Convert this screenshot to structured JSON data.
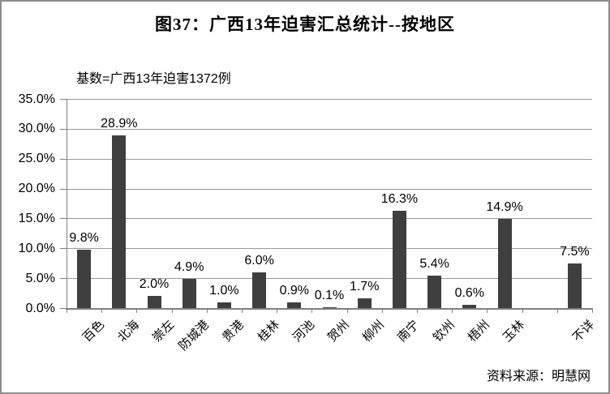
{
  "chart_data": {
    "type": "bar",
    "title": "图37：广西13年迫害汇总统计--按地区",
    "subtitle": "基数=广西13年迫害1372例",
    "source": "资料来源：明慧网",
    "categories": [
      "百色",
      "北海",
      "崇左",
      "防城港",
      "贵港",
      "桂林",
      "河池",
      "贺州",
      "柳州",
      "南宁",
      "钦州",
      "梧州",
      "玉林",
      "",
      "不详"
    ],
    "values": [
      9.8,
      28.9,
      2.0,
      4.9,
      1.0,
      6.0,
      0.9,
      0.1,
      1.7,
      16.3,
      5.4,
      0.6,
      14.9,
      null,
      7.5
    ],
    "value_labels": [
      "9.8%",
      "28.9%",
      "2.0%",
      "4.9%",
      "1.0%",
      "6.0%",
      "0.9%",
      "0.1%",
      "1.7%",
      "16.3%",
      "5.4%",
      "0.6%",
      "14.9%",
      "",
      "7.5%"
    ],
    "xlabel": "",
    "ylabel": "",
    "y_tick_labels": [
      "35.0%",
      "30.0%",
      "25.0%",
      "20.0%",
      "15.0%",
      "10.0%",
      "5.0%",
      "0.0%"
    ],
    "ylim": [
      0,
      35
    ],
    "y_tick_step": 5,
    "grid": "horizontal",
    "legend": "none",
    "bar_color": "#3f3f3f",
    "grid_color": "#999999",
    "axis_color": "#7f7f7f"
  }
}
